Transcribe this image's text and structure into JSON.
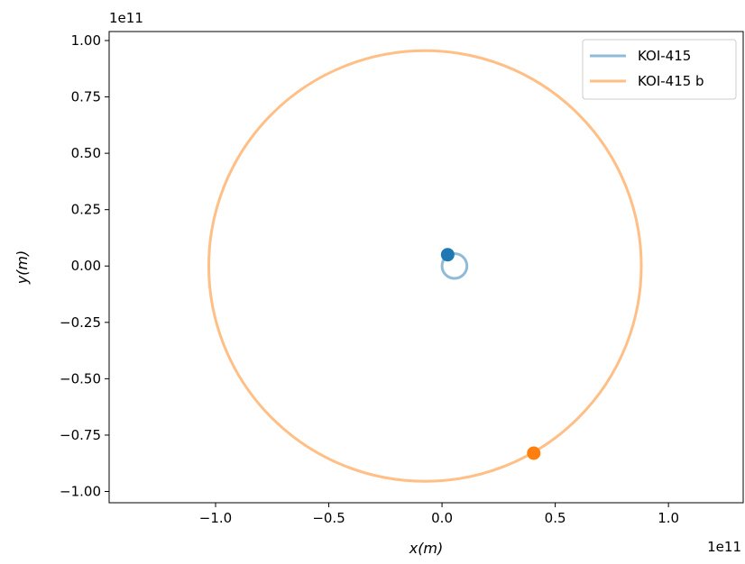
{
  "chart_data": {
    "type": "line",
    "xlabel": "x(m)",
    "ylabel": "y(m)",
    "x_offset_label": "1e11",
    "y_offset_label": "1e11",
    "xlim": [
      -1.47,
      1.33
    ],
    "ylim": [
      -1.05,
      1.04
    ],
    "x_ticks": [
      -1.0,
      -0.5,
      0.0,
      0.5,
      1.0
    ],
    "x_tick_labels": [
      "−1.0",
      "−0.5",
      "0.0",
      "0.5",
      "1.0"
    ],
    "y_ticks": [
      1.0,
      0.75,
      0.5,
      0.25,
      0.0,
      -0.25,
      -0.5,
      -0.75,
      -1.0
    ],
    "y_tick_labels": [
      "1.00",
      "0.75",
      "0.50",
      "0.25",
      "0.00",
      "−0.25",
      "−0.50",
      "−0.75",
      "−1.00"
    ],
    "grid": false,
    "legend_position": "top-right",
    "units_note": "x and y values are in units of 1e11 m",
    "series": [
      {
        "name": "KOI-415",
        "kind": "orbit",
        "color": "#1f77b4",
        "alpha": 0.5,
        "center": [
          0.055,
          0.0
        ],
        "radius": 0.055,
        "current_position": [
          0.025,
          0.05
        ]
      },
      {
        "name": "KOI-415 b",
        "kind": "orbit",
        "color": "#ff7f0e",
        "alpha": 0.5,
        "center": [
          -0.075,
          0.0
        ],
        "radius": 0.955,
        "current_position": [
          0.405,
          -0.83
        ]
      }
    ]
  }
}
